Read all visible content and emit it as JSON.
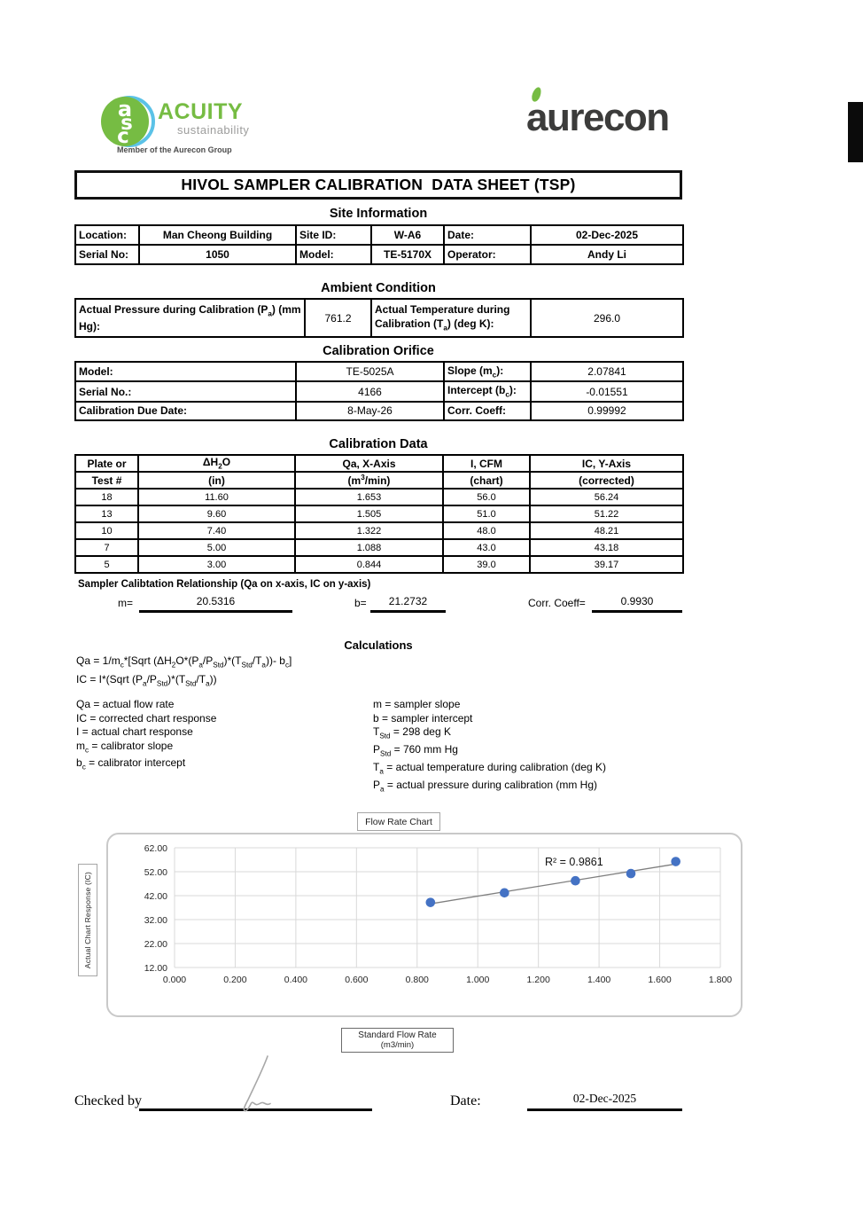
{
  "header": {
    "acuity_logo": {
      "monogram": "asc",
      "name": "ACUITY",
      "subtitle": "sustainability",
      "tagline": "Member of the Aurecon Group",
      "green": "#76BC43",
      "blue": "#5BC2E7"
    },
    "aurecon_logo": {
      "text": "aurecon",
      "color": "#3C3C3B",
      "leaf_green": "#76BC43"
    }
  },
  "title": "HIVOL SAMPLER CALIBRATION  DATA SHEET (TSP)",
  "site_information": {
    "heading": "Site Information",
    "row1": {
      "l1": "Location:",
      "v1": "Man Cheong Building",
      "l2": "Site ID:",
      "v2": "W-A6",
      "l3": "Date:",
      "v3": "02-Dec-2025"
    },
    "row2": {
      "l1": "Serial No:",
      "v1": "1050",
      "l2": "Model:",
      "v2": "TE-5170X",
      "l3": "Operator:",
      "v3": "Andy Li"
    }
  },
  "ambient_condition": {
    "heading": "Ambient Condition",
    "pressure_label": "Actual Pressure during Calibration (P<sub>a</sub>) (mm Hg):",
    "pressure_value": "761.2",
    "temperature_label": "Actual Temperature during Calibration (T<sub>a</sub>) (deg K):",
    "temperature_value": "296.0"
  },
  "calibration_orifice": {
    "heading": "Calibration Orifice",
    "r1": {
      "l1": "Model:",
      "v1": "TE-5025A",
      "l2": "Slope (m<sub>c</sub>):",
      "v2": "2.07841"
    },
    "r2": {
      "l1": "Serial No.:",
      "v1": "4166",
      "l2": "Intercept (b<sub>c</sub>):",
      "v2": "-0.01551"
    },
    "r3": {
      "l1": "Calibration Due Date:",
      "v1": "8-May-26",
      "l2": "Corr. Coeff:",
      "v2": "0.99992"
    }
  },
  "calibration_data": {
    "heading": "Calibration Data",
    "headers1": [
      "Plate or",
      "ΔH<sub>2</sub>O",
      "Qa, X-Axis",
      "I, CFM",
      "IC, Y-Axis"
    ],
    "headers2": [
      "Test #",
      "(in)",
      "(m<sup>3</sup>/min)",
      "(chart)",
      "(corrected)"
    ],
    "rows": [
      [
        "18",
        "11.60",
        "1.653",
        "56.0",
        "56.24"
      ],
      [
        "13",
        "9.60",
        "1.505",
        "51.0",
        "51.22"
      ],
      [
        "10",
        "7.40",
        "1.322",
        "48.0",
        "48.21"
      ],
      [
        "7",
        "5.00",
        "1.088",
        "43.0",
        "43.18"
      ],
      [
        "5",
        "3.00",
        "0.844",
        "39.0",
        "39.17"
      ]
    ]
  },
  "relationship": {
    "heading": "Sampler Calibtation Relationship (Qa on x-axis, IC on y-axis)",
    "m_label": "m=",
    "m_value": "20.5316",
    "b_label": "b=",
    "b_value": "21.2732",
    "corr_label": "Corr. Coeff=",
    "corr_value": "0.9930"
  },
  "calculations": {
    "heading": "Calculations",
    "formula1": "Qa = 1/m<sub>c</sub>*[Sqrt (ΔH<sub>2</sub>O*(P<sub>a</sub>/P<sub>Std</sub>)*(T<sub>Std</sub>/T<sub>a</sub>))- b<sub>c</sub>]",
    "formula2": "IC = I*(Sqrt (P<sub>a</sub>/P<sub>Std</sub>)*(T<sub>Std</sub>/T<sub>a</sub>))",
    "left_definitions": [
      "Qa = actual flow rate",
      "IC = corrected chart response",
      "I = actual chart response",
      "m<sub>c</sub>  = calibrator slope",
      "b<sub>c</sub>  = calibrator intercept"
    ],
    "right_definitions": [
      "m = sampler slope",
      "b  = sampler intercept",
      "T<sub>Std</sub> = 298 deg K",
      "P<sub>Std</sub> = 760 mm Hg",
      "T<sub>a</sub> = actual temperature during calibration (deg K)",
      "P<sub>a</sub> = actual pressure during calibration (mm Hg)"
    ]
  },
  "chart_data": {
    "type": "scatter",
    "title": "Flow Rate Chart",
    "xlabel_line1": "Standard Flow Rate",
    "xlabel_line2": "(m3/min)",
    "ylabel": "Actual Chart Response (IC)",
    "x": [
      0.844,
      1.088,
      1.322,
      1.505,
      1.653
    ],
    "y": [
      39.17,
      43.18,
      48.21,
      51.22,
      56.24
    ],
    "xlim": [
      0,
      1.8
    ],
    "ylim": [
      12,
      62
    ],
    "xticks": [
      "0.000",
      "0.200",
      "0.400",
      "0.600",
      "0.800",
      "1.000",
      "1.200",
      "1.400",
      "1.600",
      "1.800"
    ],
    "yticks": [
      "12.00",
      "22.00",
      "32.00",
      "42.00",
      "52.00",
      "62.00"
    ],
    "grid": true,
    "legend_position": "none",
    "trendline": {
      "slope": 20.5316,
      "intercept": 21.2732
    },
    "r_squared_label": "R² = 0.9861",
    "point_color": "#4472C4",
    "trendline_color": "#7F7F7F",
    "gridline_color": "#D9D9D9"
  },
  "footer": {
    "checked_by_label": "Checked by",
    "date_label": "Date:",
    "date_value": "02-Dec-2025"
  }
}
